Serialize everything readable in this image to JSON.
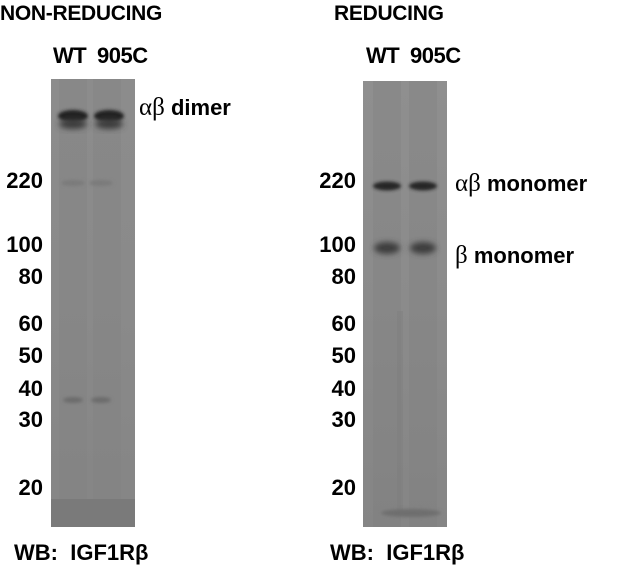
{
  "left_panel": {
    "title": "NON-REDUCING",
    "lanes": [
      "WT",
      "905C"
    ],
    "band_labels": [
      {
        "greek": "αβ",
        "text": "dimer"
      }
    ],
    "markers": [
      "220",
      "100",
      "80",
      "60",
      "50",
      "40",
      "30",
      "20"
    ],
    "wb": {
      "prefix": "WB:",
      "antibody": "IGF1Rβ"
    }
  },
  "right_panel": {
    "title": "REDUCING",
    "lanes": [
      "WT",
      "905C"
    ],
    "band_labels": [
      {
        "greek": "αβ",
        "text": "monomer"
      },
      {
        "greek": "β",
        "text": "monomer"
      }
    ],
    "markers": [
      "220",
      "100",
      "80",
      "60",
      "50",
      "40",
      "30",
      "20"
    ],
    "wb": {
      "prefix": "WB:",
      "antibody": "IGF1Rβ"
    }
  },
  "colors": {
    "gel_background": "#8a8a8a",
    "band": "#1a1a1a"
  }
}
